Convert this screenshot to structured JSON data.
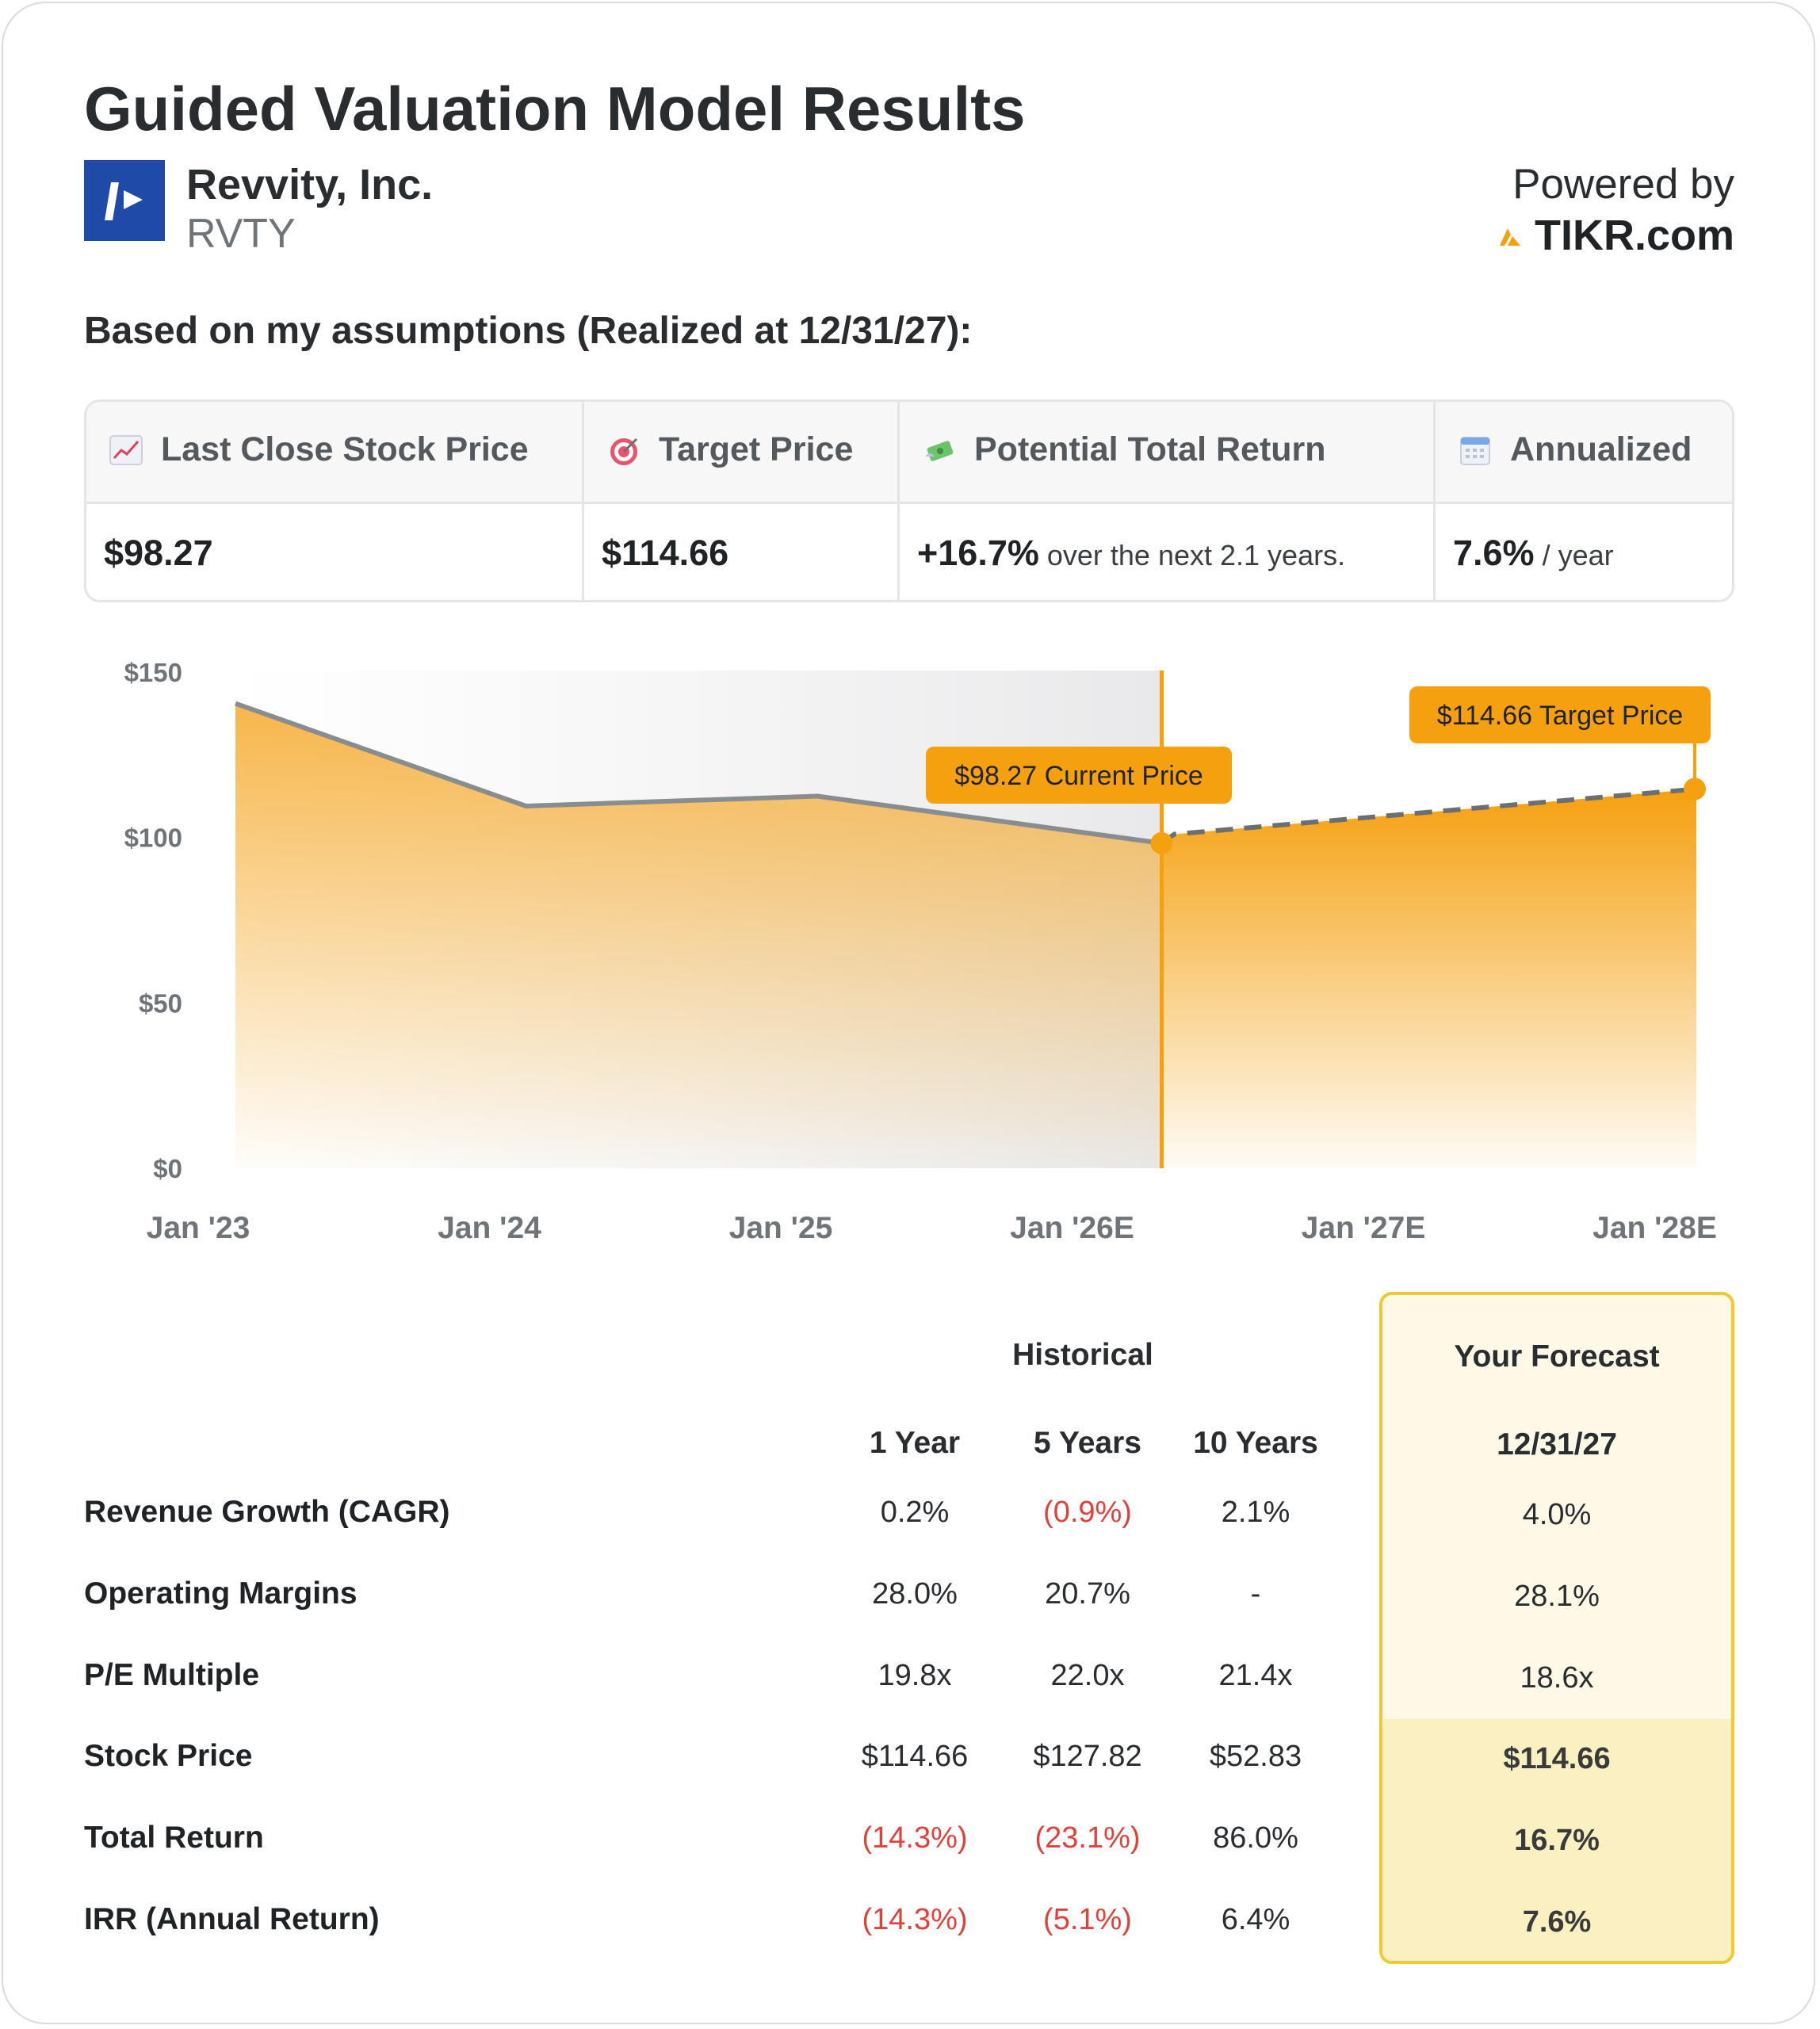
{
  "header": {
    "title": "Guided Valuation Model Results",
    "company_name": "Revvity, Inc.",
    "ticker": "RVTY",
    "powered_by": "Powered by",
    "brand": "TIKR.com"
  },
  "subhead": "Based on my assumptions (Realized at 12/31/27):",
  "stats": [
    {
      "label": "Last Close Stock Price",
      "icon": "chart-increasing-icon",
      "value": "$98.27",
      "suffix": ""
    },
    {
      "label": "Target Price",
      "icon": "target-icon",
      "value": "$114.66",
      "suffix": ""
    },
    {
      "label": "Potential Total Return",
      "icon": "money-wings-icon",
      "value": "+16.7%",
      "suffix": "over the next 2.1 years."
    },
    {
      "label": "Annualized",
      "icon": "calendar-icon",
      "value": "7.6%",
      "suffix": "/ year"
    }
  ],
  "chart_data": {
    "type": "area",
    "x_labels": [
      "Jan '23",
      "Jan '24",
      "Jan '25",
      "Jan '26E",
      "Jan '27E",
      "Jan '28E"
    ],
    "y_ticks": [
      "$0",
      "$50",
      "$100",
      "$150"
    ],
    "ylim": [
      0,
      150
    ],
    "historical": {
      "x": [
        0,
        1,
        2,
        3
      ],
      "y": [
        140.5,
        109.5,
        112.5,
        98.27
      ]
    },
    "forecast": {
      "x": [
        3,
        3.05,
        5.12
      ],
      "y": [
        98.27,
        101.0,
        114.66
      ]
    },
    "current_label": "$98.27 Current Price",
    "target_label": "$114.66 Target Price",
    "colors": {
      "area": "#f5a623",
      "line": "#8a8d90",
      "marker": "#f5a00f",
      "callout": "#f5a00f"
    }
  },
  "table": {
    "historical_header": "Historical",
    "forecast_header": "Your Forecast",
    "columns": [
      "1 Year",
      "5 Years",
      "10 Years"
    ],
    "forecast_column": "12/31/27",
    "rows": [
      {
        "label": "Revenue Growth (CAGR)",
        "values": [
          "0.2%",
          "(0.9%)",
          "2.1%"
        ],
        "forecast": "4.0%"
      },
      {
        "label": "Operating Margins",
        "values": [
          "28.0%",
          "20.7%",
          "-"
        ],
        "forecast": "28.1%"
      },
      {
        "label": "P/E Multiple",
        "values": [
          "19.8x",
          "22.0x",
          "21.4x"
        ],
        "forecast": "18.6x"
      },
      {
        "label": "Stock Price",
        "values": [
          "$114.66",
          "$127.82",
          "$52.83"
        ],
        "forecast": "$114.66"
      },
      {
        "label": "Total Return",
        "values": [
          "(14.3%)",
          "(23.1%)",
          "86.0%"
        ],
        "forecast": "16.7%"
      },
      {
        "label": "IRR (Annual Return)",
        "values": [
          "(14.3%)",
          "(5.1%)",
          "6.4%"
        ],
        "forecast": "7.6%"
      }
    ]
  }
}
